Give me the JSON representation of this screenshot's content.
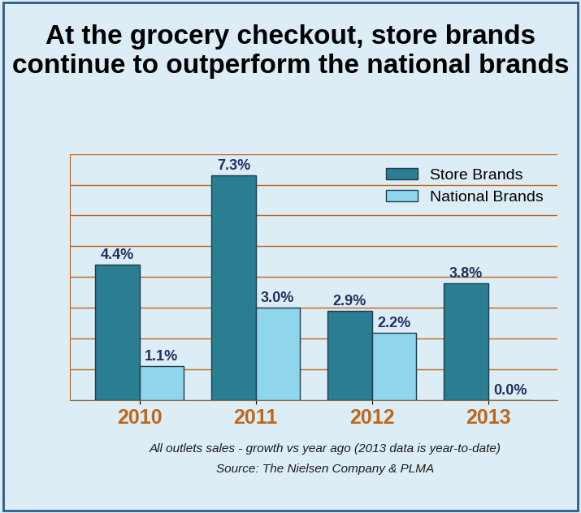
{
  "chart_data": {
    "type": "bar",
    "title": "At the grocery checkout, store brands continue to outperform the national brands",
    "notes": [
      "All outlets sales - growth vs year ago (2013 data is year-to-date)",
      "Source: The Nielsen Company & PLMA"
    ],
    "categories": [
      "2010",
      "2011",
      "2012",
      "2013"
    ],
    "series": [
      {
        "name": "Store Brands",
        "color": "#2b7d92",
        "values": [
          4.4,
          7.3,
          2.9,
          3.8
        ],
        "value_labels": [
          "4.4%",
          "7.3%",
          "2.9%",
          "3.8%"
        ]
      },
      {
        "name": "National Brands",
        "color": "#8fd6ec",
        "values": [
          1.1,
          3.0,
          2.2,
          0.0
        ],
        "value_labels": [
          "1.1%",
          "3.0%",
          "2.2%",
          "0.0%"
        ]
      }
    ],
    "ylim": [
      0,
      8
    ],
    "yticks": [
      0,
      1,
      2,
      3,
      4,
      5,
      6,
      7,
      8
    ],
    "grid": true,
    "legend": "upper right",
    "data_labels": true,
    "tick_labels": "x"
  }
}
